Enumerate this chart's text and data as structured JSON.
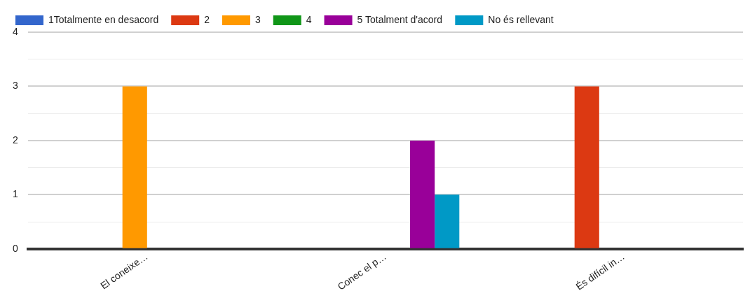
{
  "chart_data": {
    "type": "bar",
    "categories": [
      "El coneixe…",
      "Conec el p…",
      "És difícil in…"
    ],
    "series": [
      {
        "name": "1Totalmente en desacord",
        "color": "#3366cc",
        "values": [
          0,
          0,
          0
        ]
      },
      {
        "name": "2",
        "color": "#dc3912",
        "values": [
          0,
          0,
          3
        ]
      },
      {
        "name": "3",
        "color": "#ff9900",
        "values": [
          3,
          0,
          0
        ]
      },
      {
        "name": "4",
        "color": "#109618",
        "values": [
          0,
          0,
          0
        ]
      },
      {
        "name": "5 Totalment d'acord",
        "color": "#990099",
        "values": [
          0,
          2,
          0
        ]
      },
      {
        "name": "No és rellevant",
        "color": "#0099c6",
        "values": [
          0,
          1,
          0
        ]
      }
    ],
    "ylim": [
      0,
      4
    ],
    "yticks": [
      0,
      {
        "value": 0.5,
        "label": null
      },
      1,
      {
        "value": 1.5,
        "label": null
      },
      2,
      {
        "value": 2.5,
        "label": null
      },
      3,
      {
        "value": 3.5,
        "label": null
      },
      4
    ],
    "grid": "y",
    "legend": "top"
  }
}
